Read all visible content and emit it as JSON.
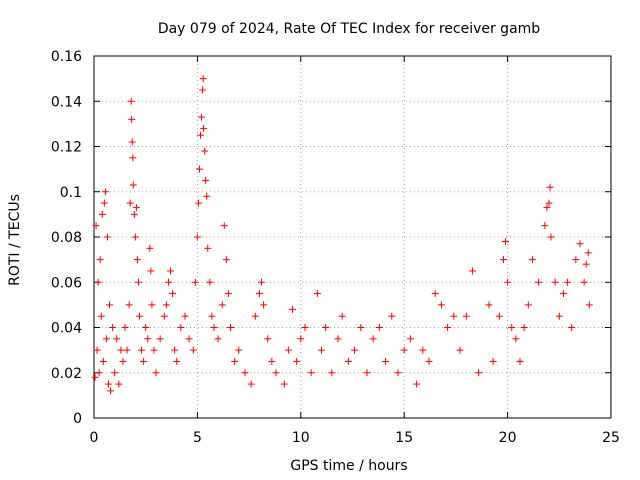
{
  "chart_data": {
    "type": "scatter",
    "title": "Day 079 of 2024, Rate Of TEC Index for receiver gamb",
    "xlabel": "GPS time / hours",
    "ylabel": "ROTI / TECUs",
    "xlim": [
      0,
      25
    ],
    "ylim": [
      0,
      0.16
    ],
    "xticks": [
      0,
      5,
      10,
      15,
      20,
      25
    ],
    "yticks": [
      0,
      0.02,
      0.04,
      0.06,
      0.08,
      0.1,
      0.12,
      0.14,
      0.16
    ],
    "xtick_labels": [
      "0",
      "5",
      "10",
      "15",
      "20",
      "25"
    ],
    "ytick_labels": [
      "0",
      "0.02",
      "0.04",
      "0.06",
      "0.08",
      "0.1",
      "0.12",
      "0.14",
      "0.16"
    ],
    "grid": true,
    "marker": "+",
    "color": "#ff0000",
    "series": [
      {
        "name": "ROTI",
        "points": [
          [
            0.05,
            0.018
          ],
          [
            0.1,
            0.085
          ],
          [
            0.15,
            0.03
          ],
          [
            0.2,
            0.06
          ],
          [
            0.25,
            0.02
          ],
          [
            0.3,
            0.07
          ],
          [
            0.35,
            0.045
          ],
          [
            0.4,
            0.09
          ],
          [
            0.45,
            0.025
          ],
          [
            0.5,
            0.095
          ],
          [
            0.55,
            0.1
          ],
          [
            0.6,
            0.035
          ],
          [
            0.65,
            0.08
          ],
          [
            0.7,
            0.015
          ],
          [
            0.75,
            0.05
          ],
          [
            0.8,
            0.012
          ],
          [
            0.9,
            0.04
          ],
          [
            1.0,
            0.02
          ],
          [
            1.1,
            0.035
          ],
          [
            1.2,
            0.015
          ],
          [
            1.3,
            0.03
          ],
          [
            1.4,
            0.025
          ],
          [
            1.5,
            0.04
          ],
          [
            1.6,
            0.03
          ],
          [
            1.7,
            0.05
          ],
          [
            1.75,
            0.095
          ],
          [
            1.8,
            0.14
          ],
          [
            1.82,
            0.132
          ],
          [
            1.85,
            0.122
          ],
          [
            1.88,
            0.115
          ],
          [
            1.9,
            0.103
          ],
          [
            1.95,
            0.09
          ],
          [
            2.0,
            0.08
          ],
          [
            2.05,
            0.093
          ],
          [
            2.1,
            0.07
          ],
          [
            2.15,
            0.06
          ],
          [
            2.2,
            0.045
          ],
          [
            2.3,
            0.03
          ],
          [
            2.4,
            0.025
          ],
          [
            2.5,
            0.04
          ],
          [
            2.6,
            0.035
          ],
          [
            2.7,
            0.075
          ],
          [
            2.75,
            0.065
          ],
          [
            2.8,
            0.05
          ],
          [
            2.9,
            0.03
          ],
          [
            3.0,
            0.02
          ],
          [
            3.2,
            0.035
          ],
          [
            3.4,
            0.045
          ],
          [
            3.5,
            0.05
          ],
          [
            3.6,
            0.06
          ],
          [
            3.7,
            0.065
          ],
          [
            3.8,
            0.055
          ],
          [
            3.9,
            0.03
          ],
          [
            4.0,
            0.025
          ],
          [
            4.2,
            0.04
          ],
          [
            4.4,
            0.045
          ],
          [
            4.6,
            0.035
          ],
          [
            4.8,
            0.03
          ],
          [
            4.9,
            0.06
          ],
          [
            5.0,
            0.08
          ],
          [
            5.05,
            0.095
          ],
          [
            5.1,
            0.11
          ],
          [
            5.15,
            0.125
          ],
          [
            5.2,
            0.133
          ],
          [
            5.25,
            0.145
          ],
          [
            5.28,
            0.15
          ],
          [
            5.3,
            0.128
          ],
          [
            5.35,
            0.118
          ],
          [
            5.4,
            0.105
          ],
          [
            5.45,
            0.098
          ],
          [
            5.5,
            0.075
          ],
          [
            5.6,
            0.06
          ],
          [
            5.7,
            0.045
          ],
          [
            5.8,
            0.04
          ],
          [
            6.0,
            0.035
          ],
          [
            6.2,
            0.05
          ],
          [
            6.3,
            0.085
          ],
          [
            6.4,
            0.07
          ],
          [
            6.5,
            0.055
          ],
          [
            6.6,
            0.04
          ],
          [
            6.8,
            0.025
          ],
          [
            7.0,
            0.03
          ],
          [
            7.3,
            0.02
          ],
          [
            7.6,
            0.015
          ],
          [
            7.8,
            0.045
          ],
          [
            8.0,
            0.055
          ],
          [
            8.1,
            0.06
          ],
          [
            8.2,
            0.05
          ],
          [
            8.4,
            0.035
          ],
          [
            8.6,
            0.025
          ],
          [
            8.8,
            0.02
          ],
          [
            9.2,
            0.015
          ],
          [
            9.4,
            0.03
          ],
          [
            9.6,
            0.048
          ],
          [
            9.8,
            0.025
          ],
          [
            10.0,
            0.035
          ],
          [
            10.2,
            0.04
          ],
          [
            10.5,
            0.02
          ],
          [
            10.8,
            0.055
          ],
          [
            11.0,
            0.03
          ],
          [
            11.2,
            0.04
          ],
          [
            11.5,
            0.02
          ],
          [
            11.8,
            0.035
          ],
          [
            12.0,
            0.045
          ],
          [
            12.3,
            0.025
          ],
          [
            12.6,
            0.03
          ],
          [
            12.9,
            0.04
          ],
          [
            13.2,
            0.02
          ],
          [
            13.5,
            0.035
          ],
          [
            13.8,
            0.04
          ],
          [
            14.1,
            0.025
          ],
          [
            14.4,
            0.045
          ],
          [
            14.7,
            0.02
          ],
          [
            15.0,
            0.03
          ],
          [
            15.3,
            0.035
          ],
          [
            15.6,
            0.015
          ],
          [
            15.9,
            0.03
          ],
          [
            16.2,
            0.025
          ],
          [
            16.5,
            0.055
          ],
          [
            16.8,
            0.05
          ],
          [
            17.1,
            0.04
          ],
          [
            17.4,
            0.045
          ],
          [
            17.7,
            0.03
          ],
          [
            18.0,
            0.045
          ],
          [
            18.3,
            0.065
          ],
          [
            18.6,
            0.02
          ],
          [
            19.1,
            0.05
          ],
          [
            19.3,
            0.025
          ],
          [
            19.6,
            0.045
          ],
          [
            19.8,
            0.07
          ],
          [
            19.9,
            0.078
          ],
          [
            20.0,
            0.06
          ],
          [
            20.2,
            0.04
          ],
          [
            20.4,
            0.035
          ],
          [
            20.6,
            0.025
          ],
          [
            20.8,
            0.04
          ],
          [
            21.0,
            0.05
          ],
          [
            21.2,
            0.07
          ],
          [
            21.5,
            0.06
          ],
          [
            21.8,
            0.085
          ],
          [
            21.9,
            0.093
          ],
          [
            22.0,
            0.095
          ],
          [
            22.05,
            0.102
          ],
          [
            22.1,
            0.08
          ],
          [
            22.3,
            0.06
          ],
          [
            22.5,
            0.045
          ],
          [
            22.7,
            0.055
          ],
          [
            22.9,
            0.06
          ],
          [
            23.1,
            0.04
          ],
          [
            23.3,
            0.07
          ],
          [
            23.5,
            0.077
          ],
          [
            23.7,
            0.06
          ],
          [
            23.8,
            0.068
          ],
          [
            23.9,
            0.073
          ],
          [
            23.95,
            0.05
          ]
        ]
      }
    ]
  }
}
